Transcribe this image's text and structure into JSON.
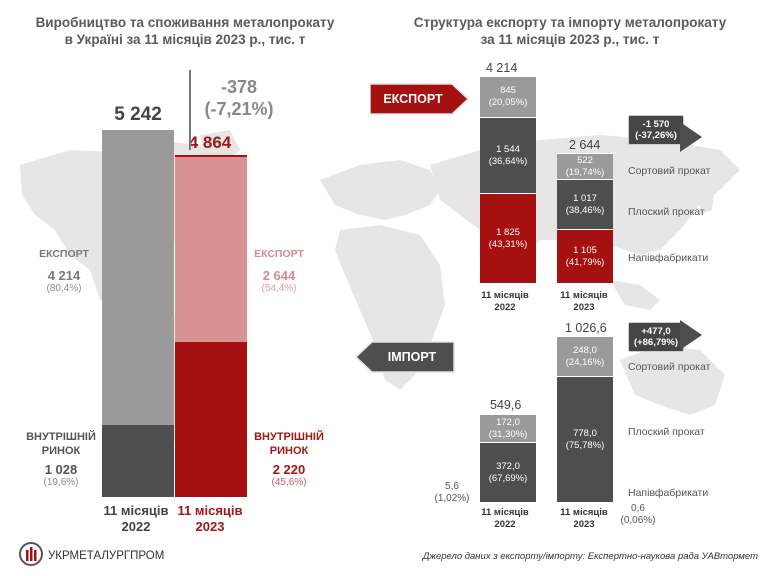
{
  "left_title": [
    "Виробництво та споживання металопрокату",
    "в Україні за 11 місяців 2023 р., тис. т"
  ],
  "right_title": [
    "Структура експорту та імпорту металопрокату",
    "за 11 місяців 2023 р., тис. т"
  ],
  "change": {
    "value": "-378",
    "pct": "(-7,21%)"
  },
  "colors": {
    "dark_gray": "#4e4e4e",
    "mid_gray": "#9a9a9a",
    "red": "#a51010",
    "light_red": "#d99292",
    "map": "#e6e6e6"
  },
  "chart_data": [
    {
      "type": "bar",
      "title": "Виробництво та споживання металопрокату в Україні за 11 місяців 2023 р., тис. т",
      "categories": [
        "11 місяців 2022",
        "11 місяців 2023"
      ],
      "totals": [
        5242,
        4864
      ],
      "totals_text": [
        "5 242",
        "4 864"
      ],
      "series": [
        {
          "name": "ЕКСПОРТ",
          "values": [
            4214,
            2644
          ],
          "values_text": [
            "4 214",
            "2 644"
          ],
          "pct_text": [
            "(80,4%)",
            "(54,4%)"
          ]
        },
        {
          "name": "ВНУТРІШНІЙ РИНОК",
          "values": [
            1028,
            2220
          ],
          "values_text": [
            "1 028",
            "2 220"
          ],
          "pct_text": [
            "(19,6%)",
            "(45,6%)"
          ]
        }
      ],
      "ylim": [
        0,
        5600
      ]
    },
    {
      "type": "bar",
      "title": "ЕКСПОРТ",
      "categories": [
        "11 місяців 2022",
        "11 місяців 2023"
      ],
      "totals": [
        4214,
        2644
      ],
      "totals_text": [
        "4 214",
        "2 644"
      ],
      "series": [
        {
          "name": "Напівфабрикати",
          "values": [
            1825,
            1105
          ],
          "labels": [
            "1 825\n(43,31%)",
            "1 105\n(41,79%)"
          ]
        },
        {
          "name": "Плоский прокат",
          "values": [
            1544,
            1017
          ],
          "labels": [
            "1 544\n(36,64%)",
            "1 017\n(38,46%)"
          ]
        },
        {
          "name": "Сортовий прокат",
          "values": [
            845,
            522
          ],
          "labels": [
            "845\n(20,05%)",
            "522\n(19,74%)"
          ]
        }
      ],
      "change_text": "-1 570\n(-37,26%)"
    },
    {
      "type": "bar",
      "title": "ІМПОРТ",
      "categories": [
        "11 місяців 2022",
        "11 місяців 2023"
      ],
      "totals": [
        549.6,
        1026.6
      ],
      "totals_text": [
        "549,6",
        "1 026,6"
      ],
      "series": [
        {
          "name": "Напівфабрикати",
          "values": [
            5.6,
            0.6
          ],
          "labels": [
            "5,6\n(1,02%)",
            "0,6\n(0,06%)"
          ]
        },
        {
          "name": "Плоский прокат",
          "values": [
            372.0,
            778.0
          ],
          "labels": [
            "372,0\n(67,69%)",
            "778,0\n(75,78%)"
          ]
        },
        {
          "name": "Сортовий прокат",
          "values": [
            172.0,
            248.0
          ],
          "labels": [
            "172,0\n(31,30%)",
            "248,0\n(24,16%)"
          ]
        }
      ],
      "change_text": "+477,0\n(+86,79%)"
    }
  ],
  "left_labels": {
    "export_label": "ЕКСПОРТ",
    "domestic_label": [
      "ВНУТРІШНІЙ",
      "РИНОК"
    ],
    "x_2022": [
      "11 місяців",
      "2022"
    ],
    "x_2023": [
      "11 місяців",
      "2023"
    ]
  },
  "right_labels": {
    "export_arrow": "ЕКСПОРТ",
    "import_arrow": "ІМПОРТ",
    "x_2022": [
      "11 місяців",
      "2022"
    ],
    "x_2023": [
      "11 місяців",
      "2023"
    ],
    "legend": [
      "Сортовий прокат",
      "Плоский прокат",
      "Напівфабрикати"
    ]
  },
  "logo_text": "УКРМЕТАЛУРГПРОМ",
  "source": "Джерело даних з експорту/імпорту: Експертно-наукова рада УАВтормет"
}
